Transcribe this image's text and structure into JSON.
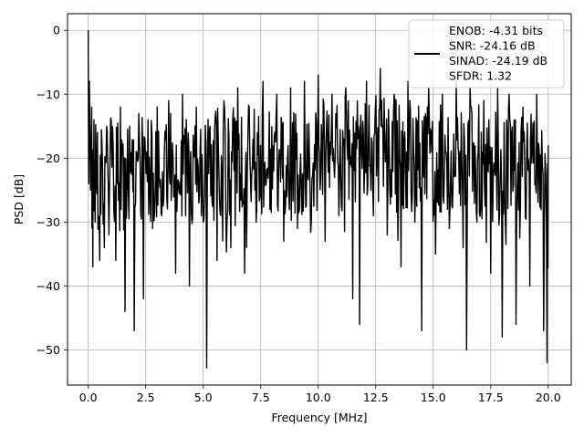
{
  "chart_data": {
    "type": "line",
    "title": "",
    "xlabel": "Frequency [MHz]",
    "ylabel": "PSD [dB]",
    "xlim": [
      -0.9,
      21.0
    ],
    "ylim": [
      -55.5,
      2.6
    ],
    "x_ticks": [
      0.0,
      2.5,
      5.0,
      7.5,
      10.0,
      12.5,
      15.0,
      17.5,
      20.0
    ],
    "x_tick_labels": [
      "0.0",
      "2.5",
      "5.0",
      "7.5",
      "10.0",
      "12.5",
      "15.0",
      "17.5",
      "20.0"
    ],
    "y_ticks": [
      0,
      -10,
      -20,
      -30,
      -40,
      -50
    ],
    "y_tick_labels": [
      "0",
      "−10",
      "−20",
      "−30",
      "−40",
      "−50"
    ],
    "grid": true,
    "legend_position": "top-right",
    "legend": [
      "ENOB: -4.31 bits",
      "SNR: -24.16 dB",
      "SINAD: -24.19 dB",
      "SFDR: 1.32"
    ],
    "series": [
      {
        "color": "#000000",
        "x": [
          0.0,
          0.02,
          0.05,
          0.1,
          0.15,
          0.2,
          0.25,
          0.3,
          0.4,
          0.5,
          0.6,
          0.7,
          0.8,
          0.9,
          1.0,
          1.2,
          1.4,
          1.6,
          1.8,
          2.0,
          2.2,
          2.4,
          2.6,
          2.8,
          3.0,
          3.2,
          3.5,
          3.8,
          4.1,
          4.4,
          4.7,
          5.0,
          5.15,
          5.3,
          5.6,
          5.9,
          6.2,
          6.5,
          6.8,
          7.0,
          7.3,
          7.6,
          7.9,
          8.2,
          8.5,
          8.8,
          9.1,
          9.4,
          9.7,
          10.0,
          10.3,
          10.6,
          10.9,
          11.2,
          11.5,
          11.7,
          11.8,
          12.1,
          12.4,
          12.7,
          13.0,
          13.3,
          13.6,
          13.9,
          14.2,
          14.5,
          14.8,
          15.1,
          15.4,
          15.7,
          16.0,
          16.3,
          16.45,
          16.6,
          16.9,
          17.2,
          17.5,
          17.8,
          18.0,
          18.3,
          18.6,
          18.9,
          19.2,
          19.5,
          19.8,
          19.95,
          20.0
        ],
        "y": [
          0.0,
          -24.0,
          -8.0,
          -25.0,
          -12.0,
          -37.0,
          -14.0,
          -30.0,
          -16.0,
          -36.0,
          -18.0,
          -34.0,
          -15.0,
          -32.0,
          -14.0,
          -36.0,
          -12.0,
          -44.0,
          -15.0,
          -47.0,
          -13.0,
          -42.0,
          -14.0,
          -31.0,
          -12.0,
          -29.0,
          -11.0,
          -38.0,
          -10.0,
          -40.0,
          -12.0,
          -30.0,
          -52.8,
          -15.0,
          -36.0,
          -11.0,
          -34.0,
          -9.0,
          -38.0,
          -12.0,
          -30.0,
          -8.0,
          -28.0,
          -10.0,
          -33.0,
          -9.0,
          -31.0,
          -8.0,
          -30.0,
          -7.0,
          -33.0,
          -10.0,
          -29.0,
          -9.0,
          -42.0,
          -11.0,
          -46.0,
          -8.0,
          -29.0,
          -6.0,
          -32.0,
          -10.0,
          -37.0,
          -8.0,
          -30.0,
          -47.0,
          -9.0,
          -35.0,
          -10.0,
          -31.0,
          -8.0,
          -34.0,
          -50.0,
          -9.0,
          -30.0,
          -11.0,
          -38.0,
          -9.0,
          -48.0,
          -10.0,
          -46.0,
          -12.0,
          -40.0,
          -10.0,
          -47.0,
          -52.0,
          -18.0
        ]
      }
    ]
  }
}
